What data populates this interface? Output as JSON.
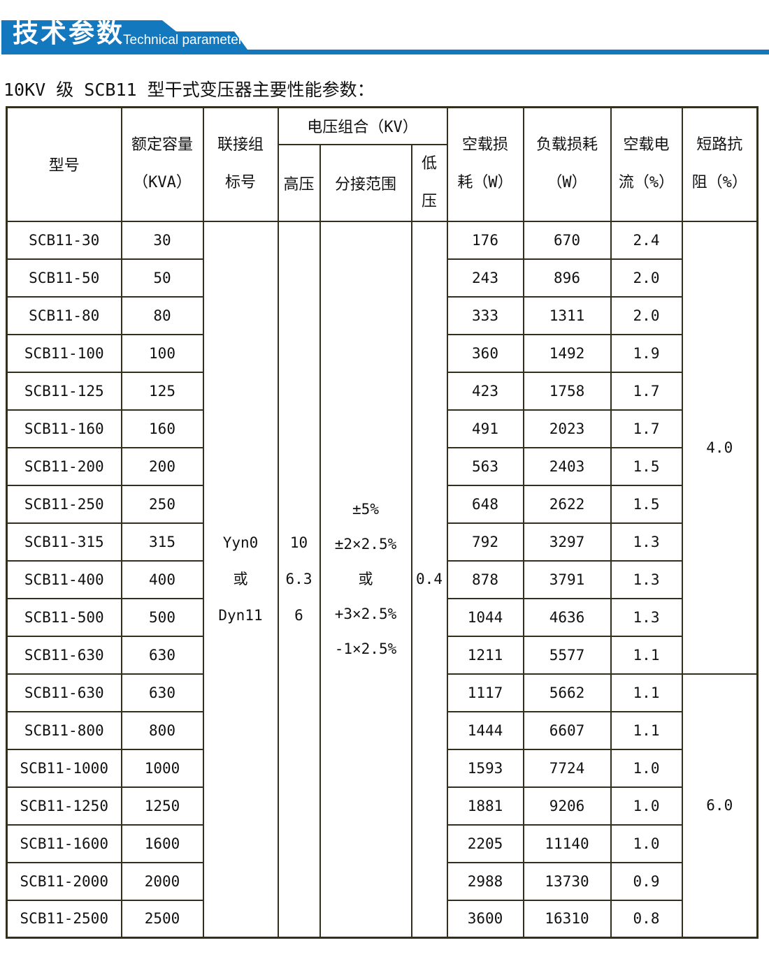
{
  "banner": {
    "title_cn": "技术参数",
    "title_en": "Technical parameter"
  },
  "page_title": "10KV 级 SCB11 型干式变压器主要性能参数：",
  "colors": {
    "banner_blue": "#1478be",
    "table_border": "#32301d",
    "text": "#111111"
  },
  "table": {
    "header": {
      "model": "型号",
      "capacity_lines": [
        "额定容量",
        "（KVA）"
      ],
      "connection_lines": [
        "联接组",
        "标号"
      ],
      "voltage_group": "电压组合（KV）",
      "hv": "高压",
      "tap": "分接范围",
      "lv_lines": [
        "低",
        "压"
      ],
      "noload_loss_lines": [
        "空载损",
        "耗（W）"
      ],
      "load_loss_lines": [
        "负载损耗",
        "（W）"
      ],
      "noload_current_lines": [
        "空载电",
        "流（%）"
      ],
      "impedance_lines": [
        "短路抗",
        "阻（%）"
      ]
    },
    "merged": {
      "connection_lines": [
        "Yyn0",
        "或",
        "Dyn11"
      ],
      "hv_lines": [
        "10",
        "6.3",
        "6"
      ],
      "tap_lines": [
        "±5%",
        "±2×2.5%",
        "或",
        "+3×2.5%",
        "-1×2.5%"
      ],
      "lv": "0.4",
      "impedance_groups": [
        {
          "value": "4.0",
          "row_span": 12
        },
        {
          "value": "6.0",
          "row_span": 7
        }
      ]
    },
    "rows": [
      {
        "model": "SCB11-30",
        "kva": "30",
        "noload_w": "176",
        "load_w": "670",
        "noload_current": "2.4"
      },
      {
        "model": "SCB11-50",
        "kva": "50",
        "noload_w": "243",
        "load_w": "896",
        "noload_current": "2.0"
      },
      {
        "model": "SCB11-80",
        "kva": "80",
        "noload_w": "333",
        "load_w": "1311",
        "noload_current": "2.0"
      },
      {
        "model": "SCB11-100",
        "kva": "100",
        "noload_w": "360",
        "load_w": "1492",
        "noload_current": "1.9"
      },
      {
        "model": "SCB11-125",
        "kva": "125",
        "noload_w": "423",
        "load_w": "1758",
        "noload_current": "1.7"
      },
      {
        "model": "SCB11-160",
        "kva": "160",
        "noload_w": "491",
        "load_w": "2023",
        "noload_current": "1.7"
      },
      {
        "model": "SCB11-200",
        "kva": "200",
        "noload_w": "563",
        "load_w": "2403",
        "noload_current": "1.5"
      },
      {
        "model": "SCB11-250",
        "kva": "250",
        "noload_w": "648",
        "load_w": "2622",
        "noload_current": "1.5"
      },
      {
        "model": "SCB11-315",
        "kva": "315",
        "noload_w": "792",
        "load_w": "3297",
        "noload_current": "1.3"
      },
      {
        "model": "SCB11-400",
        "kva": "400",
        "noload_w": "878",
        "load_w": "3791",
        "noload_current": "1.3"
      },
      {
        "model": "SCB11-500",
        "kva": "500",
        "noload_w": "1044",
        "load_w": "4636",
        "noload_current": "1.3"
      },
      {
        "model": "SCB11-630",
        "kva": "630",
        "noload_w": "1211",
        "load_w": "5577",
        "noload_current": "1.1"
      },
      {
        "model": "SCB11-630",
        "kva": "630",
        "noload_w": "1117",
        "load_w": "5662",
        "noload_current": "1.1"
      },
      {
        "model": "SCB11-800",
        "kva": "800",
        "noload_w": "1444",
        "load_w": "6607",
        "noload_current": "1.1"
      },
      {
        "model": "SCB11-1000",
        "kva": "1000",
        "noload_w": "1593",
        "load_w": "7724",
        "noload_current": "1.0"
      },
      {
        "model": "SCB11-1250",
        "kva": "1250",
        "noload_w": "1881",
        "load_w": "9206",
        "noload_current": "1.0"
      },
      {
        "model": "SCB11-1600",
        "kva": "1600",
        "noload_w": "2205",
        "load_w": "11140",
        "noload_current": "1.0"
      },
      {
        "model": "SCB11-2000",
        "kva": "2000",
        "noload_w": "2988",
        "load_w": "13730",
        "noload_current": "0.9"
      },
      {
        "model": "SCB11-2500",
        "kva": "2500",
        "noload_w": "3600",
        "load_w": "16310",
        "noload_current": "0.8"
      }
    ]
  }
}
